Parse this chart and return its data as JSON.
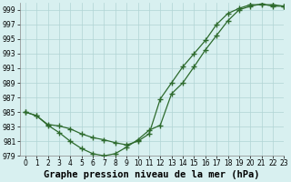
{
  "xlabel": "Graphe pression niveau de la mer (hPa)",
  "x": [
    0,
    1,
    2,
    3,
    4,
    5,
    6,
    7,
    8,
    9,
    10,
    11,
    12,
    13,
    14,
    15,
    16,
    17,
    18,
    19,
    20,
    21,
    22,
    23
  ],
  "line1": [
    985.0,
    984.5,
    983.2,
    982.2,
    981.0,
    980.0,
    979.3,
    979.0,
    979.3,
    980.2,
    981.2,
    982.5,
    983.2,
    987.5,
    989.0,
    991.2,
    993.5,
    995.5,
    997.5,
    999.0,
    999.5,
    999.8,
    999.5,
    999.5
  ],
  "line2": [
    985.0,
    984.5,
    983.3,
    983.1,
    982.7,
    982.0,
    981.5,
    981.2,
    980.8,
    980.5,
    981.0,
    982.0,
    986.8,
    989.0,
    991.2,
    993.0,
    994.8,
    997.0,
    998.5,
    999.2,
    999.7,
    999.7,
    999.7,
    999.5
  ],
  "line_color": "#2d6a2d",
  "bg_color": "#d8f0f0",
  "grid_color": "#b0d4d4",
  "ylim": [
    979,
    1000
  ],
  "xlim": [
    -0.5,
    23
  ],
  "yticks": [
    979,
    981,
    983,
    985,
    987,
    989,
    991,
    993,
    995,
    997,
    999
  ],
  "xticks": [
    0,
    1,
    2,
    3,
    4,
    5,
    6,
    7,
    8,
    9,
    10,
    11,
    12,
    13,
    14,
    15,
    16,
    17,
    18,
    19,
    20,
    21,
    22,
    23
  ],
  "marker": "+",
  "marker_size": 4,
  "line_width": 0.9,
  "xlabel_fontsize": 7.5,
  "tick_fontsize": 5.5
}
